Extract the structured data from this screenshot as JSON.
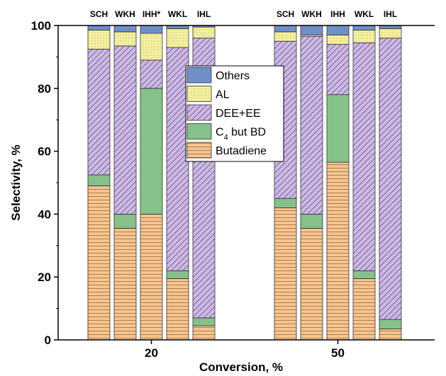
{
  "chart_data": {
    "type": "bar",
    "stacked": true,
    "title": "",
    "xlabel": "Conversion, %",
    "ylabel": "Selectivity, %",
    "ylim": [
      0,
      100
    ],
    "yticks": [
      "0",
      "20",
      "40",
      "60",
      "80",
      "100"
    ],
    "groups": [
      {
        "label": "20",
        "catalysts": [
          "SCH",
          "WKH",
          "IHH*",
          "WKL",
          "IHL"
        ],
        "series_values": {
          "Butadiene": [
            49,
            35.5,
            40,
            19.5,
            4.5
          ],
          "C4 but BD": [
            3.5,
            4.5,
            40,
            2.5,
            2.5
          ],
          "DEE+EE": [
            40,
            53.5,
            9,
            71,
            89
          ],
          "AL": [
            6,
            4.5,
            8.5,
            6,
            3.5
          ],
          "Others": [
            1.5,
            2,
            2.5,
            1,
            0.5
          ]
        }
      },
      {
        "label": "50",
        "catalysts": [
          "SCH",
          "WKH",
          "IHH",
          "WKL",
          "IHL"
        ],
        "series_values": {
          "Butadiene": [
            42,
            35.5,
            56.5,
            19.5,
            3.5
          ],
          "C4 but BD": [
            3,
            4.5,
            21.5,
            2.5,
            3
          ],
          "DEE+EE": [
            50,
            56.5,
            16,
            72.5,
            89.5
          ],
          "AL": [
            3,
            0.5,
            3,
            4,
            3
          ],
          "Others": [
            2,
            3,
            3,
            1.5,
            1
          ]
        }
      }
    ],
    "series": [
      {
        "name": "Butadiene",
        "color": "#F6C490",
        "pattern": "horizontal-lines"
      },
      {
        "name": "C4 but BD",
        "color": "#86C08A",
        "pattern": "solid"
      },
      {
        "name": "DEE+EE",
        "color": "#CDB8E6",
        "pattern": "diagonal-lines"
      },
      {
        "name": "AL",
        "color": "#F5F0A0",
        "pattern": "dots"
      },
      {
        "name": "Others",
        "color": "#6F8FCB",
        "pattern": "solid"
      }
    ],
    "legend": {
      "placement": "center",
      "entries": [
        "Others",
        "AL",
        "DEE+EE",
        "C4 but BD",
        "Butadiene"
      ],
      "c4_prefix": "C",
      "c4_sub": "4",
      "c4_suffix": " but BD"
    }
  }
}
